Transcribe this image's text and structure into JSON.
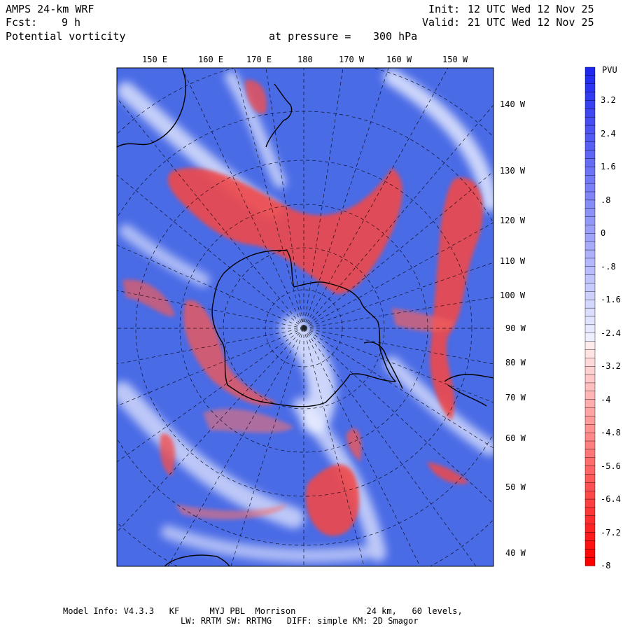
{
  "header": {
    "model": "AMPS 24-km WRF",
    "forecast_label": "Fcst:",
    "forecast_value": "9 h",
    "field": "Potential vorticity",
    "level_label": "at pressure =",
    "level_value": "300 hPa",
    "init_label": "Init:",
    "init_value": "12 UTC Wed 12 Nov 25",
    "valid_label": "Valid:",
    "valid_value": "21 UTC Wed 12 Nov 25"
  },
  "map": {
    "top_longitude_labels": [
      "150 E",
      "160 E",
      "170 E",
      "180",
      "170 W",
      "160 W",
      "150 W"
    ],
    "right_longitude_labels": [
      "140 W",
      "130 W",
      "120 W",
      "110 W",
      "100 W",
      "90 W",
      "80 W",
      "70 W",
      "60 W",
      "50 W",
      "40 W"
    ],
    "colors": {
      "positive": "#4a6be6",
      "negative": "#f03c3c",
      "neutral": "#ffffff",
      "coast": "#000000",
      "grid": "#000000"
    }
  },
  "colorbar": {
    "unit": "PVU",
    "ticks": [
      "3.2",
      "2.4",
      "1.6",
      ".8",
      "0",
      "-.8",
      "-1.6",
      "-2.4",
      "-3.2",
      "-4",
      "-4.8",
      "-5.6",
      "-6.4",
      "-7.2",
      "-8"
    ],
    "max": 4,
    "min": -8
  },
  "footer": {
    "line1": "Model Info: V4.3.3   KF      MYJ PBL  Morrison              24 km,   60 levels,",
    "line2": "LW: RRTM SW: RRTMG   DIFF: simple KM: 2D Smagor"
  }
}
